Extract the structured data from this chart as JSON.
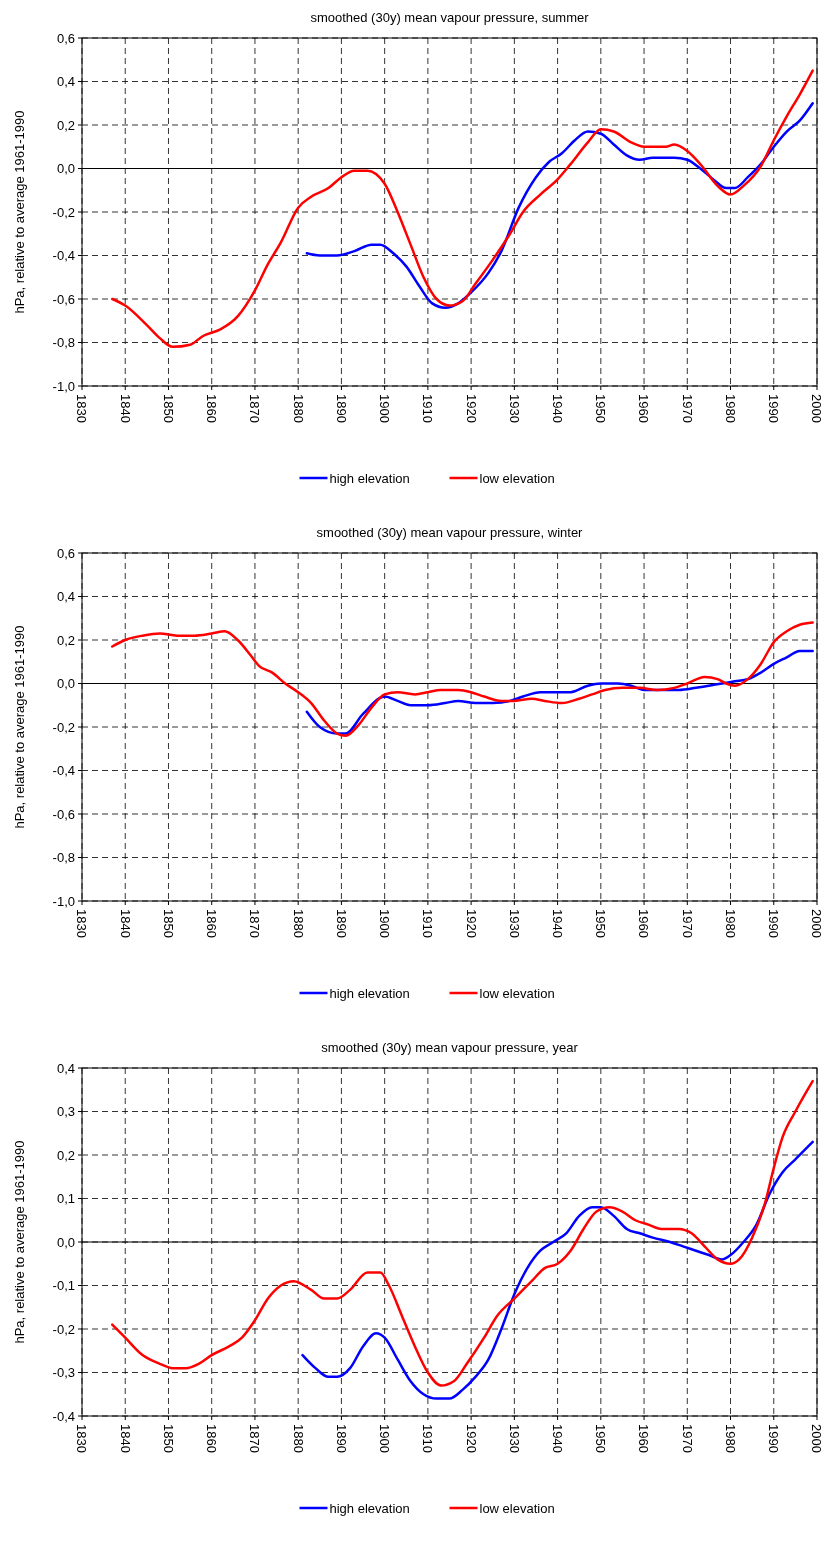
{
  "chart_data": [
    {
      "type": "line",
      "title": "smoothed (30y) mean vapour pressure, summer",
      "ylabel": "hPa, relative to average 1961-1990",
      "xlim": [
        1830,
        2000
      ],
      "xticks": [
        1830,
        1840,
        1850,
        1860,
        1870,
        1880,
        1890,
        1900,
        1910,
        1920,
        1930,
        1940,
        1950,
        1960,
        1970,
        1980,
        1990,
        2000
      ],
      "ylim": [
        -1.0,
        0.6
      ],
      "yticks": [
        {
          "value": -1.0,
          "label": "-1,0"
        },
        {
          "value": -0.8,
          "label": "-0,8"
        },
        {
          "value": -0.6,
          "label": "-0,6"
        },
        {
          "value": -0.4,
          "label": "-0,4"
        },
        {
          "value": -0.2,
          "label": "-0,2"
        },
        {
          "value": 0,
          "label": "0,0"
        },
        {
          "value": 0.2,
          "label": "0,2"
        },
        {
          "value": 0.4,
          "label": "0,4"
        },
        {
          "value": 0.6,
          "label": "0,6"
        }
      ],
      "grid": true,
      "legend": "bottom",
      "line_style": "solid",
      "series": [
        {
          "name": "high elevation",
          "color": "#0000ff",
          "x": [
            1882,
            1885,
            1889,
            1893,
            1897,
            1899,
            1902,
            1905,
            1908,
            1911,
            1914,
            1917,
            1920,
            1924,
            1927,
            1931,
            1935,
            1938,
            1941,
            1944,
            1947,
            1950,
            1953,
            1956,
            1959,
            1962,
            1967,
            1970,
            1973,
            1976,
            1979,
            1981,
            1984,
            1987,
            1990,
            1993,
            1996,
            1999
          ],
          "values": [
            -0.39,
            -0.4,
            -0.4,
            -0.38,
            -0.35,
            -0.35,
            -0.39,
            -0.45,
            -0.54,
            -0.62,
            -0.64,
            -0.62,
            -0.57,
            -0.48,
            -0.38,
            -0.18,
            -0.04,
            0.03,
            0.07,
            0.13,
            0.17,
            0.16,
            0.11,
            0.06,
            0.04,
            0.05,
            0.05,
            0.04,
            0.0,
            -0.05,
            -0.09,
            -0.09,
            -0.04,
            0.02,
            0.1,
            0.17,
            0.22,
            0.3
          ]
        },
        {
          "name": "low elevation",
          "color": "#ff0000",
          "x": [
            1837,
            1840,
            1845,
            1848,
            1851,
            1855,
            1858,
            1862,
            1866,
            1870,
            1873,
            1876,
            1880,
            1883,
            1887,
            1890,
            1893,
            1896,
            1900,
            1903,
            1906,
            1909,
            1912,
            1915,
            1918,
            1921,
            1925,
            1929,
            1932,
            1936,
            1940,
            1943,
            1947,
            1950,
            1953,
            1957,
            1960,
            1965,
            1967,
            1970,
            1973,
            1977,
            1980,
            1983,
            1987,
            1990,
            1993,
            1996,
            1999
          ],
          "values": [
            -0.6,
            -0.63,
            -0.72,
            -0.78,
            -0.82,
            -0.81,
            -0.77,
            -0.74,
            -0.68,
            -0.56,
            -0.44,
            -0.34,
            -0.18,
            -0.13,
            -0.09,
            -0.04,
            -0.01,
            -0.01,
            -0.07,
            -0.2,
            -0.35,
            -0.5,
            -0.6,
            -0.63,
            -0.61,
            -0.53,
            -0.42,
            -0.3,
            -0.2,
            -0.12,
            -0.05,
            0.02,
            0.12,
            0.18,
            0.17,
            0.12,
            0.1,
            0.1,
            0.11,
            0.08,
            0.02,
            -0.08,
            -0.12,
            -0.08,
            0.01,
            0.13,
            0.24,
            0.34,
            0.45
          ]
        }
      ]
    },
    {
      "type": "line",
      "title": "smoothed (30y) mean vapour pressure, winter",
      "ylabel": "hPa, relative to average 1961-1990",
      "xlim": [
        1830,
        2000
      ],
      "xticks": [
        1830,
        1840,
        1850,
        1860,
        1870,
        1880,
        1890,
        1900,
        1910,
        1920,
        1930,
        1940,
        1950,
        1960,
        1970,
        1980,
        1990,
        2000
      ],
      "ylim": [
        -1.0,
        0.6
      ],
      "yticks": [
        {
          "value": -1.0,
          "label": "-1,0"
        },
        {
          "value": -0.8,
          "label": "-0,8"
        },
        {
          "value": -0.6,
          "label": "-0,6"
        },
        {
          "value": -0.4,
          "label": "-0,4"
        },
        {
          "value": -0.2,
          "label": "-0,2"
        },
        {
          "value": 0,
          "label": "0,0"
        },
        {
          "value": 0.2,
          "label": "0,2"
        },
        {
          "value": 0.4,
          "label": "0,4"
        },
        {
          "value": 0.6,
          "label": "0,6"
        }
      ],
      "grid": true,
      "legend": "bottom",
      "line_style": "solid",
      "series": [
        {
          "name": "high elevation",
          "color": "#0000ff",
          "x": [
            1882,
            1885,
            1889,
            1891,
            1895,
            1900,
            1903,
            1906,
            1910,
            1914,
            1917,
            1921,
            1925,
            1929,
            1932,
            1936,
            1940,
            1943,
            1947,
            1950,
            1954,
            1957,
            1960,
            1964,
            1968,
            1972,
            1975,
            1978,
            1981,
            1984,
            1987,
            1990,
            1993,
            1996,
            1999
          ],
          "values": [
            -0.13,
            -0.2,
            -0.23,
            -0.23,
            -0.14,
            -0.06,
            -0.08,
            -0.1,
            -0.1,
            -0.09,
            -0.08,
            -0.09,
            -0.09,
            -0.08,
            -0.06,
            -0.04,
            -0.04,
            -0.04,
            -0.01,
            0.0,
            0.0,
            -0.01,
            -0.03,
            -0.03,
            -0.03,
            -0.02,
            -0.01,
            0.0,
            0.01,
            0.02,
            0.05,
            0.09,
            0.12,
            0.15,
            0.15
          ]
        },
        {
          "name": "low elevation",
          "color": "#ff0000",
          "x": [
            1837,
            1840,
            1844,
            1848,
            1852,
            1856,
            1860,
            1863,
            1866,
            1869,
            1871,
            1874,
            1877,
            1880,
            1883,
            1886,
            1889,
            1891,
            1894,
            1897,
            1900,
            1903,
            1907,
            1910,
            1913,
            1917,
            1920,
            1923,
            1927,
            1930,
            1934,
            1937,
            1941,
            1945,
            1948,
            1951,
            1955,
            1959,
            1963,
            1967,
            1970,
            1974,
            1977,
            1979,
            1981,
            1984,
            1987,
            1990,
            1993,
            1996,
            1999
          ],
          "values": [
            0.17,
            0.2,
            0.22,
            0.23,
            0.22,
            0.22,
            0.23,
            0.24,
            0.2,
            0.13,
            0.08,
            0.05,
            0.0,
            -0.04,
            -0.09,
            -0.17,
            -0.23,
            -0.24,
            -0.19,
            -0.11,
            -0.05,
            -0.04,
            -0.05,
            -0.04,
            -0.03,
            -0.03,
            -0.04,
            -0.06,
            -0.08,
            -0.08,
            -0.07,
            -0.08,
            -0.09,
            -0.07,
            -0.05,
            -0.03,
            -0.02,
            -0.02,
            -0.03,
            -0.02,
            0.0,
            0.03,
            0.02,
            0.0,
            -0.01,
            0.02,
            0.09,
            0.19,
            0.24,
            0.27,
            0.28
          ]
        }
      ]
    },
    {
      "type": "line",
      "title": "smoothed (30y) mean vapour pressure, year",
      "ylabel": "hPa, relative to average 1961-1990",
      "xlim": [
        1830,
        2000
      ],
      "xticks": [
        1830,
        1840,
        1850,
        1860,
        1870,
        1880,
        1890,
        1900,
        1910,
        1920,
        1930,
        1940,
        1950,
        1960,
        1970,
        1980,
        1990,
        2000
      ],
      "ylim": [
        -0.4,
        0.4
      ],
      "yticks": [
        {
          "value": -0.4,
          "label": "-0,4"
        },
        {
          "value": -0.3,
          "label": "-0,3"
        },
        {
          "value": -0.2,
          "label": "-0,2"
        },
        {
          "value": -0.1,
          "label": "-0,1"
        },
        {
          "value": 0,
          "label": "0,0"
        },
        {
          "value": 0.1,
          "label": "0,1"
        },
        {
          "value": 0.2,
          "label": "0,2"
        },
        {
          "value": 0.3,
          "label": "0,3"
        },
        {
          "value": 0.4,
          "label": "0,4"
        }
      ],
      "grid": true,
      "legend": "bottom",
      "line_style": "solid",
      "series": [
        {
          "name": "high elevation",
          "color": "#0000ff",
          "x": [
            1881,
            1884,
            1887,
            1889,
            1892,
            1895,
            1898,
            1900,
            1903,
            1906,
            1909,
            1912,
            1915,
            1918,
            1921,
            1924,
            1927,
            1930,
            1933,
            1936,
            1939,
            1942,
            1945,
            1948,
            1950,
            1953,
            1956,
            1959,
            1962,
            1966,
            1969,
            1972,
            1975,
            1978,
            1980,
            1983,
            1986,
            1989,
            1992,
            1995,
            1999
          ],
          "values": [
            -0.26,
            -0.29,
            -0.31,
            -0.31,
            -0.29,
            -0.24,
            -0.21,
            -0.22,
            -0.27,
            -0.32,
            -0.35,
            -0.36,
            -0.36,
            -0.34,
            -0.31,
            -0.27,
            -0.2,
            -0.12,
            -0.06,
            -0.02,
            0.0,
            0.02,
            0.06,
            0.08,
            0.08,
            0.06,
            0.03,
            0.02,
            0.01,
            0.0,
            -0.01,
            -0.02,
            -0.03,
            -0.04,
            -0.03,
            0.0,
            0.04,
            0.11,
            0.16,
            0.19,
            0.23
          ]
        },
        {
          "name": "low elevation",
          "color": "#ff0000",
          "x": [
            1837,
            1840,
            1844,
            1848,
            1851,
            1854,
            1857,
            1860,
            1864,
            1867,
            1870,
            1873,
            1876,
            1879,
            1883,
            1886,
            1889,
            1892,
            1896,
            1899,
            1901,
            1904,
            1907,
            1910,
            1913,
            1916,
            1919,
            1923,
            1926,
            1930,
            1934,
            1937,
            1940,
            1943,
            1946,
            1949,
            1952,
            1955,
            1958,
            1961,
            1964,
            1968,
            1971,
            1974,
            1977,
            1980,
            1982,
            1985,
            1988,
            1990,
            1992,
            1995,
            1999
          ],
          "values": [
            -0.19,
            -0.22,
            -0.26,
            -0.28,
            -0.29,
            -0.29,
            -0.28,
            -0.26,
            -0.24,
            -0.22,
            -0.18,
            -0.13,
            -0.1,
            -0.09,
            -0.11,
            -0.13,
            -0.13,
            -0.11,
            -0.07,
            -0.07,
            -0.1,
            -0.17,
            -0.24,
            -0.3,
            -0.33,
            -0.32,
            -0.28,
            -0.22,
            -0.17,
            -0.13,
            -0.09,
            -0.06,
            -0.05,
            -0.02,
            0.03,
            0.07,
            0.08,
            0.07,
            0.05,
            0.04,
            0.03,
            0.03,
            0.02,
            -0.01,
            -0.04,
            -0.05,
            -0.04,
            0.01,
            0.09,
            0.17,
            0.24,
            0.3,
            0.37
          ]
        }
      ]
    }
  ]
}
